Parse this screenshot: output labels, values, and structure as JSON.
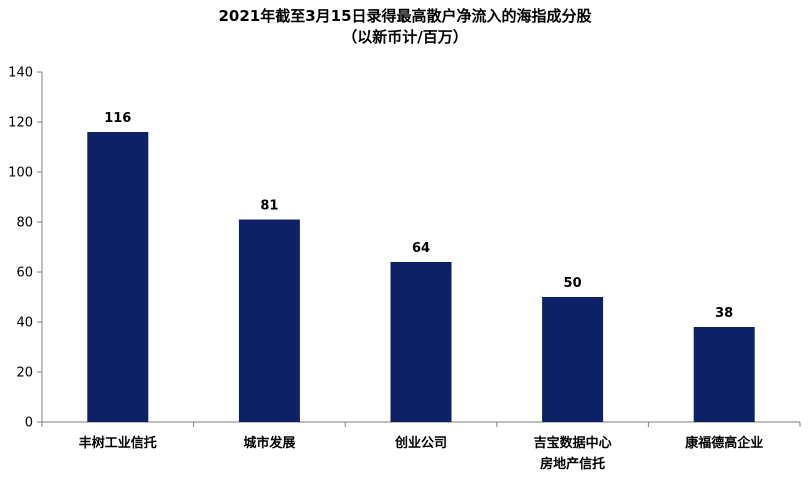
{
  "chart_data": {
    "type": "bar",
    "title": "2021年截至3月15日录得最高散户净流入的海指成分股",
    "subtitle": "（以新币计/百万）",
    "categories": [
      [
        "丰树工业信托"
      ],
      [
        "城市发展"
      ],
      [
        "创业公司"
      ],
      [
        "吉宝数据中心",
        "房地产信托"
      ],
      [
        "康福德高企业"
      ]
    ],
    "values": [
      116,
      81,
      64,
      50,
      38
    ],
    "value_labels": [
      "116",
      "81",
      "64",
      "50",
      "38"
    ],
    "ylim": [
      0,
      140
    ],
    "yticks": [
      0,
      20,
      40,
      60,
      80,
      100,
      120,
      140
    ],
    "ytick_labels": [
      "0",
      "20",
      "40",
      "60",
      "80",
      "100",
      "120",
      "140"
    ],
    "xlabel": "",
    "ylabel": "",
    "bar_color": "#0e2167",
    "grid": false,
    "legend": false
  }
}
